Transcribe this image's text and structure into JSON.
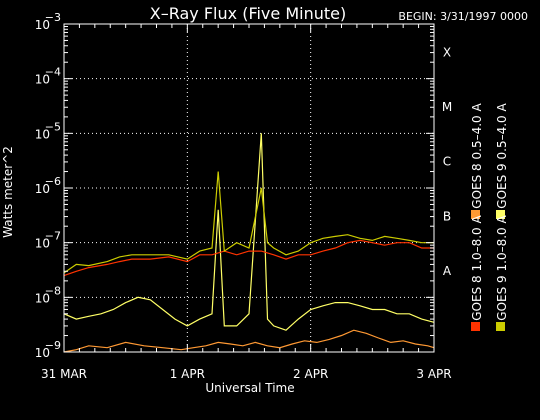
{
  "chart_data": {
    "type": "line",
    "title": "X–Ray Flux (Five Minute)",
    "begin_label": "BEGIN: 3/31/1997 0000",
    "xlabel": "Universal Time",
    "ylabel": "Watts meter^2",
    "y_scale": "log",
    "ylim": [
      1e-09,
      0.001
    ],
    "xlim_days": [
      0,
      3
    ],
    "x_tick_labels": [
      "31 MAR",
      "1 APR",
      "2 APR",
      "3 APR"
    ],
    "y_tick_labels": [
      {
        "mant": "10",
        "exp": "−9"
      },
      {
        "mant": "10",
        "exp": "−8"
      },
      {
        "mant": "10",
        "exp": "−7"
      },
      {
        "mant": "10",
        "exp": "−6"
      },
      {
        "mant": "10",
        "exp": "−5"
      },
      {
        "mant": "10",
        "exp": "−4"
      },
      {
        "mant": "10",
        "exp": "−3"
      }
    ],
    "flare_classes": [
      "A",
      "B",
      "C",
      "M",
      "X"
    ],
    "grid": true,
    "legend_position": "right, rotated vertical",
    "series": [
      {
        "name": "GOES 8 1.0–8.0 A",
        "color": "#ff3300",
        "x": [
          0,
          0.1,
          0.2,
          0.35,
          0.45,
          0.55,
          0.7,
          0.85,
          1.0,
          1.1,
          1.2,
          1.3,
          1.4,
          1.5,
          1.6,
          1.7,
          1.8,
          1.9,
          2.0,
          2.1,
          2.2,
          2.3,
          2.4,
          2.5,
          2.6,
          2.7,
          2.8,
          2.9,
          3.0
        ],
        "y": [
          2.5e-08,
          3e-08,
          3.5e-08,
          4e-08,
          4.5e-08,
          5e-08,
          5e-08,
          5.5e-08,
          4.5e-08,
          6e-08,
          6e-08,
          7e-08,
          6e-08,
          7e-08,
          7e-08,
          6e-08,
          5e-08,
          6e-08,
          6e-08,
          7e-08,
          8e-08,
          1e-07,
          1.1e-07,
          1e-07,
          9e-08,
          1e-07,
          1e-07,
          8e-08,
          8e-08
        ]
      },
      {
        "name": "GOES 8 0.5–4.0 A",
        "color": "#ff9933",
        "x": [
          0,
          0.1,
          0.2,
          0.35,
          0.5,
          0.65,
          0.8,
          0.95,
          1.05,
          1.15,
          1.25,
          1.35,
          1.45,
          1.55,
          1.65,
          1.75,
          1.85,
          1.95,
          2.05,
          2.15,
          2.25,
          2.35,
          2.45,
          2.55,
          2.65,
          2.75,
          2.85,
          2.95,
          3.0
        ],
        "y": [
          1e-09,
          1.1e-09,
          1.3e-09,
          1.2e-09,
          1.5e-09,
          1.3e-09,
          1.2e-09,
          1.1e-09,
          1.2e-09,
          1.3e-09,
          1.5e-09,
          1.4e-09,
          1.3e-09,
          1.5e-09,
          1.3e-09,
          1.2e-09,
          1.4e-09,
          1.6e-09,
          1.5e-09,
          1.7e-09,
          2e-09,
          2.5e-09,
          2.2e-09,
          1.8e-09,
          1.5e-09,
          1.6e-09,
          1.4e-09,
          1.3e-09,
          1.2e-09
        ]
      },
      {
        "name": "GOES 9 1.0–8.0 A",
        "color": "#cccc00",
        "x": [
          0,
          0.1,
          0.2,
          0.35,
          0.45,
          0.55,
          0.7,
          0.85,
          1.0,
          1.1,
          1.2,
          1.25,
          1.3,
          1.4,
          1.5,
          1.6,
          1.65,
          1.7,
          1.8,
          1.9,
          2.0,
          2.1,
          2.2,
          2.3,
          2.4,
          2.5,
          2.6,
          2.7,
          2.8,
          2.9,
          3.0
        ],
        "y": [
          2.8e-08,
          4e-08,
          3.8e-08,
          4.5e-08,
          5.5e-08,
          6e-08,
          6e-08,
          6e-08,
          5e-08,
          7e-08,
          8e-08,
          2e-06,
          7e-08,
          1e-07,
          8e-08,
          1e-06,
          1e-07,
          8e-08,
          6e-08,
          7e-08,
          1e-07,
          1.2e-07,
          1.3e-07,
          1.4e-07,
          1.2e-07,
          1.1e-07,
          1.3e-07,
          1.2e-07,
          1.1e-07,
          1e-07,
          1e-07
        ]
      },
      {
        "name": "GOES 9 0.5–4.0 A",
        "color": "#ffff66",
        "x": [
          0,
          0.1,
          0.2,
          0.3,
          0.4,
          0.5,
          0.6,
          0.7,
          0.8,
          0.9,
          1.0,
          1.1,
          1.2,
          1.25,
          1.3,
          1.4,
          1.5,
          1.6,
          1.65,
          1.7,
          1.8,
          1.9,
          2.0,
          2.1,
          2.2,
          2.3,
          2.4,
          2.5,
          2.6,
          2.7,
          2.8,
          2.9,
          3.0
        ],
        "y": [
          5e-09,
          4e-09,
          4.5e-09,
          5e-09,
          6e-09,
          8e-09,
          1e-08,
          9e-09,
          6e-09,
          4e-09,
          3e-09,
          4e-09,
          5e-09,
          4e-07,
          3e-09,
          3e-09,
          5e-09,
          1e-05,
          4e-09,
          3e-09,
          2.5e-09,
          4e-09,
          6e-09,
          7e-09,
          8e-09,
          8e-09,
          7e-09,
          6e-09,
          6e-09,
          5e-09,
          5e-09,
          4e-09,
          3.5e-09
        ]
      }
    ]
  }
}
